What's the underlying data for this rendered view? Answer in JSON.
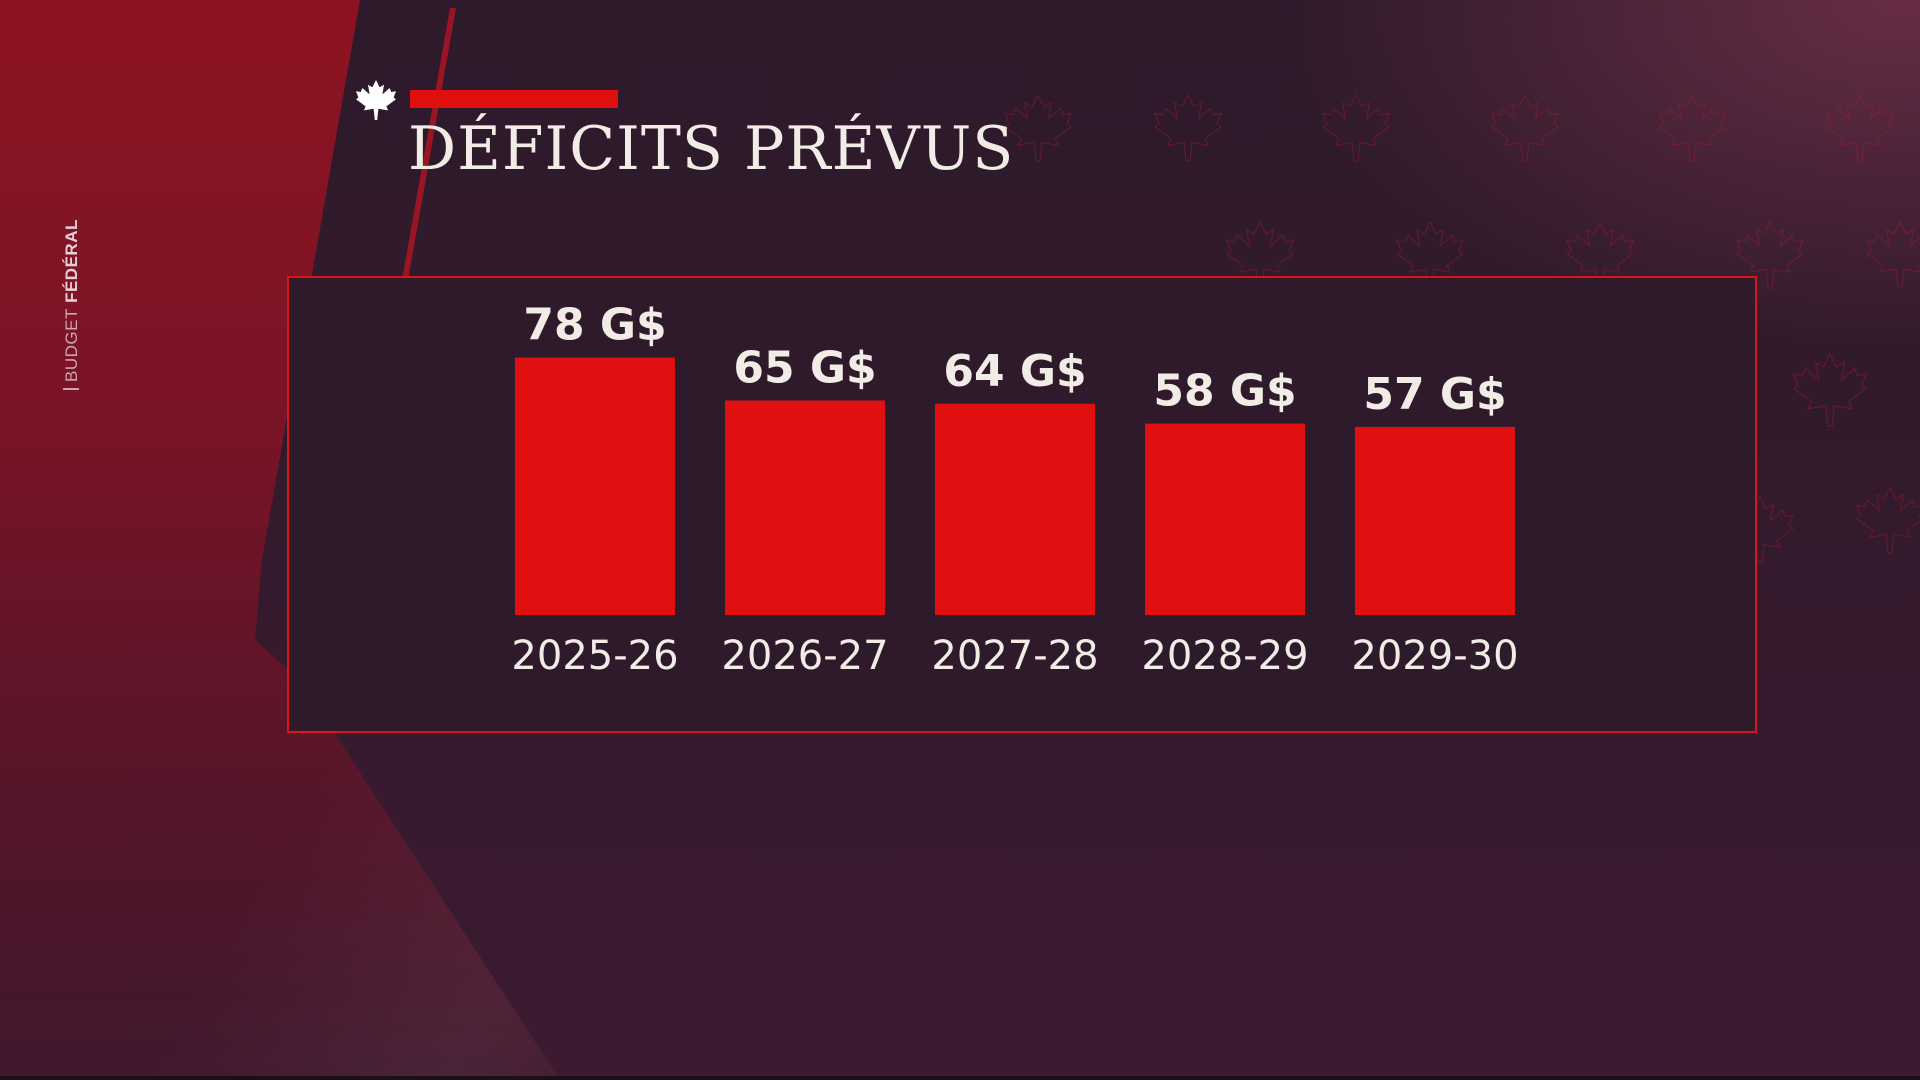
{
  "header": {
    "title": "DÉFICITS PRÉVUS"
  },
  "side_tag": {
    "part1": "BUDGET",
    "part2": "FÉDÉRAL"
  },
  "colors": {
    "bar": "#e01010",
    "panel_border": "#d8141c",
    "text": "#f2ece6",
    "accent": "#e01010"
  },
  "icons": {
    "header": "maple-leaf-icon",
    "background": "maple-leaf-icon"
  },
  "chart_data": {
    "type": "bar",
    "categories": [
      "2025-26",
      "2026-27",
      "2027-28",
      "2028-29",
      "2029-30"
    ],
    "values": [
      78,
      65,
      64,
      58,
      57
    ],
    "value_labels": [
      "78 G$",
      "65 G$",
      "64 G$",
      "58 G$",
      "57 G$"
    ],
    "title": "DÉFICITS PRÉVUS",
    "xlabel": "",
    "ylabel": "",
    "grid": false,
    "legend": "none"
  }
}
